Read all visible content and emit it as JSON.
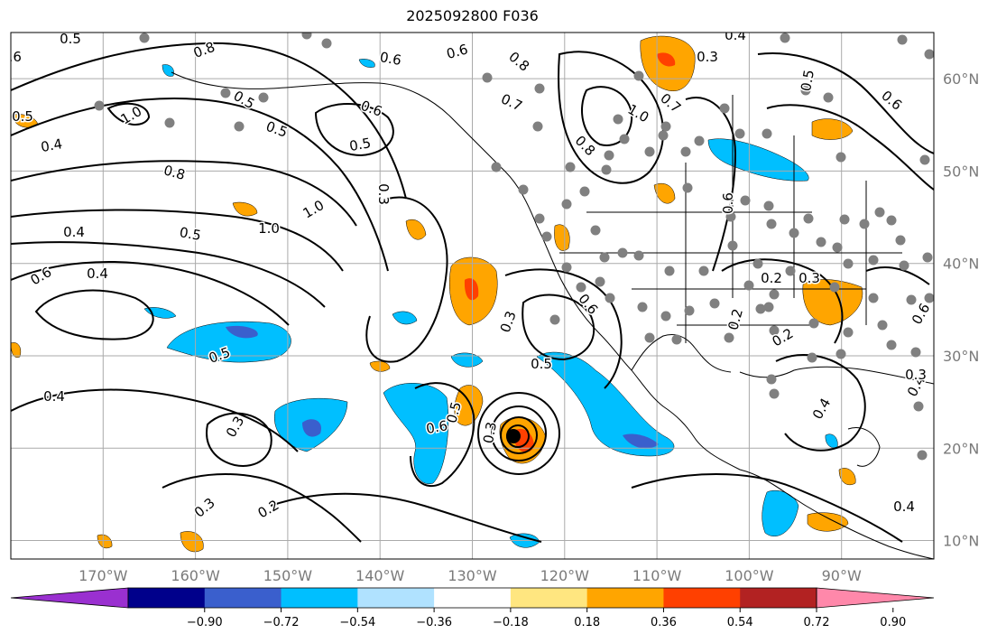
{
  "title": "2025092800 F036",
  "map": {
    "lon_labels": [
      "170°W",
      "160°W",
      "150°W",
      "140°W",
      "130°W",
      "120°W",
      "110°W",
      "100°W",
      "90°W"
    ],
    "lat_labels": [
      "60°N",
      "50°N",
      "40°N",
      "30°N",
      "20°N",
      "10°N"
    ],
    "grid_lons": [
      -170,
      -160,
      -150,
      -140,
      -130,
      -120,
      -110,
      -100,
      -90
    ],
    "grid_lats": [
      60,
      50,
      40,
      30,
      20,
      10
    ],
    "extent": {
      "lon_min": -180,
      "lon_max": -80,
      "lat_min": 8,
      "lat_max": 65
    },
    "contour_labels": [
      "0.5",
      "0.8",
      "0.6",
      "0.6",
      "0.8",
      "0.4",
      "0.3",
      "0.5",
      "0.6",
      "0.5",
      "1.0",
      "0.6",
      "0.4",
      "0.5",
      "0.5",
      "0.7",
      "0.8",
      "1.0",
      "0.5",
      "1.0",
      "0.3",
      "0.4",
      "0.8",
      "1.0",
      "0.6",
      "0.7",
      "0.3",
      "0.5",
      "0.6",
      "0.4",
      "0.5",
      "0.4",
      "0.3",
      "0.6",
      "0.5",
      "0.6",
      "0.3",
      "0.2",
      "0.5",
      "0.2",
      "0.3",
      "0.3",
      "0.2",
      "0.4",
      "0.4",
      "0.2",
      "0.6",
      "0.3",
      "0.4",
      "0.6",
      "0.3"
    ]
  },
  "colorbar": {
    "ticks": [
      "−0.90",
      "−0.72",
      "−0.54",
      "−0.36",
      "−0.18",
      "0.18",
      "0.36",
      "0.54",
      "0.72",
      "0.90"
    ],
    "colors": [
      "#9a30d0",
      "#00008b",
      "#3a5fcd",
      "#00bfff",
      "#b0e2ff",
      "#ffffff",
      "#ffe680",
      "#ffa500",
      "#ff4000",
      "#b22222",
      "#ff88aa"
    ],
    "under_color": "#9a30d0",
    "over_color": "#ff88aa"
  }
}
